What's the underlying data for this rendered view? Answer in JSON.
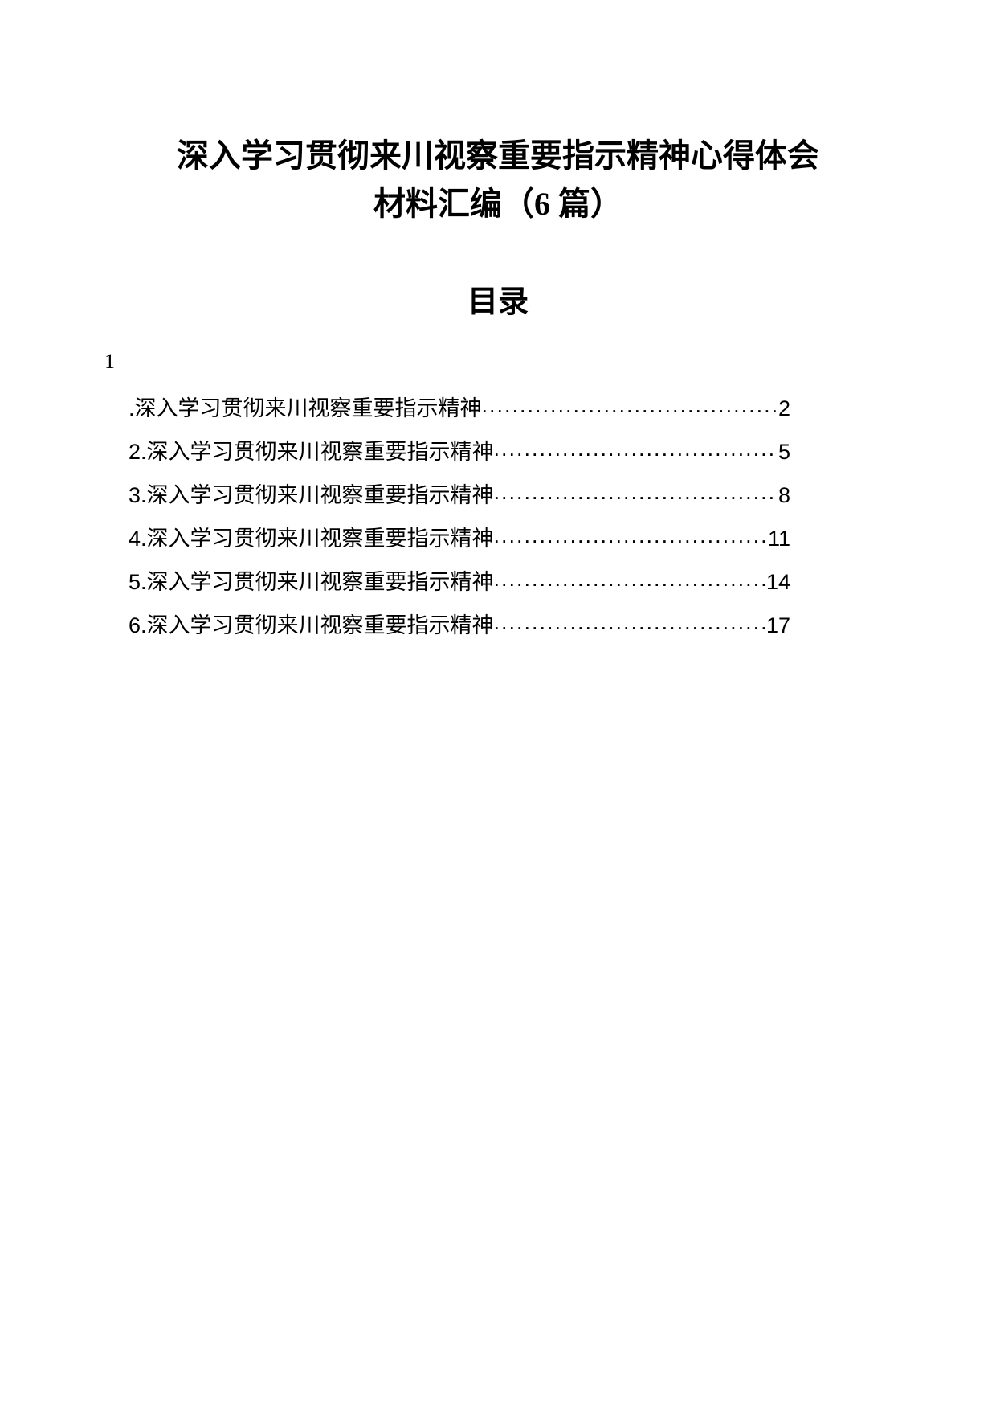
{
  "title_line1": "深入学习贯彻来川视察重要指示精神心得体会",
  "title_line2": "材料汇编（6 篇）",
  "toc_heading": "目录",
  "number_one": "1",
  "toc": {
    "entries": [
      {
        "label": ".深入学习贯彻来川视察重要指示精神",
        "page": "2"
      },
      {
        "label": "2.深入学习贯彻来川视察重要指示精神",
        "page": "5"
      },
      {
        "label": "3.深入学习贯彻来川视察重要指示精神",
        "page": "8"
      },
      {
        "label": "4.深入学习贯彻来川视察重要指示精神",
        "page": "11"
      },
      {
        "label": "5.深入学习贯彻来川视察重要指示精神",
        "page": "14"
      },
      {
        "label": "6.深入学习贯彻来川视察重要指示精神",
        "page": "17"
      }
    ]
  },
  "colors": {
    "background": "#ffffff",
    "text": "#000000"
  }
}
